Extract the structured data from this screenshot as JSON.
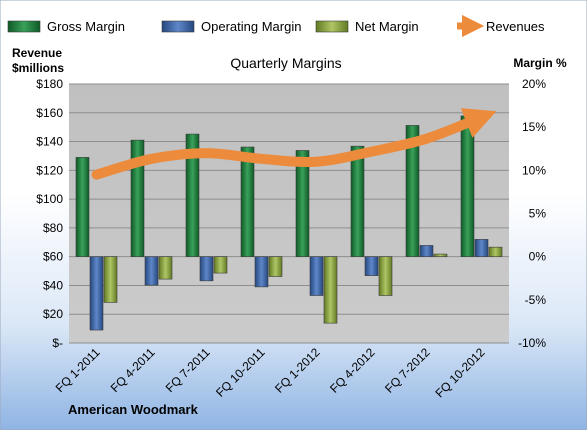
{
  "chart_data": {
    "type": "bar",
    "title": "Quarterly Margins",
    "company": "American Woodmark",
    "left_axis_label": [
      "Revenue",
      "$millions"
    ],
    "right_axis_label": "Margin %",
    "left_ylim": [
      0,
      180
    ],
    "left_ticks": [
      {
        "value": 180,
        "label": "$180"
      },
      {
        "value": 160,
        "label": "$160"
      },
      {
        "value": 140,
        "label": "$140"
      },
      {
        "value": 120,
        "label": "$120"
      },
      {
        "value": 100,
        "label": "$100"
      },
      {
        "value": 80,
        "label": "$80"
      },
      {
        "value": 60,
        "label": "$60"
      },
      {
        "value": 40,
        "label": "$40"
      },
      {
        "value": 20,
        "label": "$20"
      },
      {
        "value": 0,
        "label": "$-"
      }
    ],
    "right_ylim": [
      -10,
      20
    ],
    "right_ticks": [
      {
        "value": 20,
        "label": "20%"
      },
      {
        "value": 15,
        "label": "15%"
      },
      {
        "value": 10,
        "label": "10%"
      },
      {
        "value": 5,
        "label": "5%"
      },
      {
        "value": 0,
        "label": "0%"
      },
      {
        "value": -5,
        "label": "-5%"
      },
      {
        "value": -10,
        "label": "-10%"
      }
    ],
    "categories": [
      "FQ 1-2011",
      "FQ 4-2011",
      "FQ 7-2011",
      "FQ 10-2011",
      "FQ 1-2012",
      "FQ 4-2012",
      "FQ 7-2012",
      "FQ 10-2012"
    ],
    "series": [
      {
        "name": "Gross Margin",
        "axis": "right",
        "color": "#1f7a3c",
        "values": [
          11.5,
          13.5,
          14.2,
          12.7,
          12.3,
          12.8,
          15.2,
          16.3
        ]
      },
      {
        "name": "Operating Margin",
        "axis": "right",
        "color": "#3b64ad",
        "values": [
          -8.5,
          -3.3,
          -2.8,
          -3.5,
          -4.5,
          -2.2,
          1.3,
          2.0
        ]
      },
      {
        "name": "Net Margin",
        "axis": "right",
        "color": "#8faa3e",
        "values": [
          -5.3,
          -2.6,
          -1.9,
          -2.3,
          -7.7,
          -4.5,
          0.3,
          1.1
        ]
      },
      {
        "name": "Revenues",
        "axis": "left",
        "color": "#ed8b3c",
        "type": "line",
        "values": [
          117,
          128,
          132,
          128,
          126,
          133,
          142,
          157
        ]
      }
    ],
    "grid": true,
    "legend_position": "top"
  }
}
